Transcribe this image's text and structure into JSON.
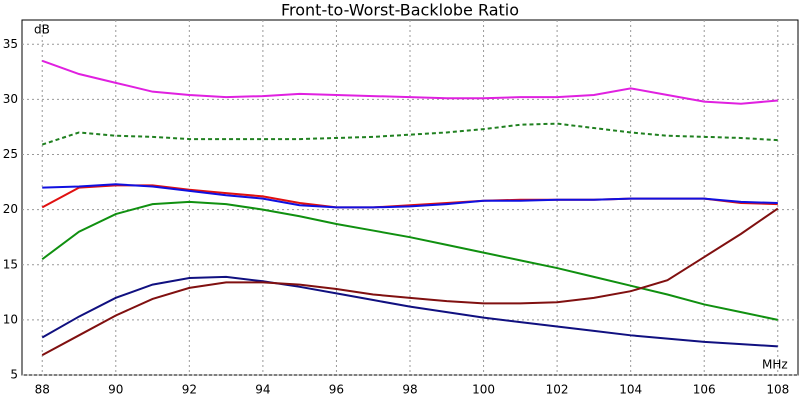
{
  "chart_data": {
    "type": "line",
    "title": "Front-to-Worst-Backlobe Ratio",
    "y_label": "dB",
    "x_label": "MHz",
    "x": [
      88,
      89,
      90,
      91,
      92,
      93,
      94,
      95,
      96,
      97,
      98,
      99,
      100,
      101,
      102,
      103,
      104,
      105,
      106,
      107,
      108
    ],
    "series": [
      {
        "color": "#e020e0",
        "style": "solid",
        "values": [
          33.5,
          32.3,
          31.5,
          30.7,
          30.4,
          30.2,
          30.3,
          30.5,
          30.4,
          30.3,
          30.2,
          30.1,
          30.1,
          30.2,
          30.2,
          30.4,
          31.0,
          30.4,
          29.8,
          29.6,
          29.9
        ]
      },
      {
        "color": "#208020",
        "style": "dashed",
        "values": [
          25.9,
          27.0,
          26.7,
          26.6,
          26.4,
          26.4,
          26.4,
          26.4,
          26.5,
          26.6,
          26.8,
          27.0,
          27.3,
          27.7,
          27.8,
          27.4,
          27.0,
          26.7,
          26.6,
          26.5,
          26.3
        ]
      },
      {
        "color": "#e01010",
        "style": "solid",
        "values": [
          20.2,
          22.0,
          22.2,
          22.2,
          21.8,
          21.5,
          21.2,
          20.6,
          20.2,
          20.2,
          20.4,
          20.6,
          20.8,
          20.9,
          20.9,
          20.9,
          21.0,
          21.0,
          21.0,
          20.6,
          20.5
        ]
      },
      {
        "color": "#1010e0",
        "style": "solid",
        "values": [
          22.0,
          22.1,
          22.3,
          22.1,
          21.7,
          21.3,
          21.0,
          20.4,
          20.2,
          20.2,
          20.3,
          20.5,
          20.8,
          20.8,
          20.9,
          20.9,
          21.0,
          21.0,
          21.0,
          20.7,
          20.6
        ]
      },
      {
        "color": "#109010",
        "style": "solid",
        "values": [
          15.5,
          18.0,
          19.6,
          20.5,
          20.7,
          20.5,
          20.0,
          19.4,
          18.7,
          18.1,
          17.5,
          16.8,
          16.1,
          15.4,
          14.7,
          13.9,
          13.1,
          12.3,
          11.4,
          10.7,
          10.0
        ]
      },
      {
        "color": "#101080",
        "style": "solid",
        "values": [
          8.4,
          10.3,
          12.0,
          13.2,
          13.8,
          13.9,
          13.5,
          13.0,
          12.4,
          11.8,
          11.2,
          10.7,
          10.2,
          9.8,
          9.4,
          9.0,
          8.6,
          8.3,
          8.0,
          7.8,
          7.6
        ]
      },
      {
        "color": "#801010",
        "style": "solid",
        "values": [
          6.8,
          8.6,
          10.4,
          11.9,
          12.9,
          13.4,
          13.4,
          13.2,
          12.8,
          12.3,
          12.0,
          11.7,
          11.5,
          11.5,
          11.6,
          12.0,
          12.6,
          13.6,
          15.7,
          17.8,
          20.1
        ]
      }
    ],
    "xlim": [
      87.45,
      108.55
    ],
    "xticks": [
      88,
      90,
      92,
      94,
      96,
      98,
      100,
      102,
      104,
      106,
      108
    ],
    "ylim": [
      5,
      37.2
    ],
    "yticks": [
      5,
      10,
      15,
      20,
      25,
      30,
      35
    ],
    "grid": true
  }
}
